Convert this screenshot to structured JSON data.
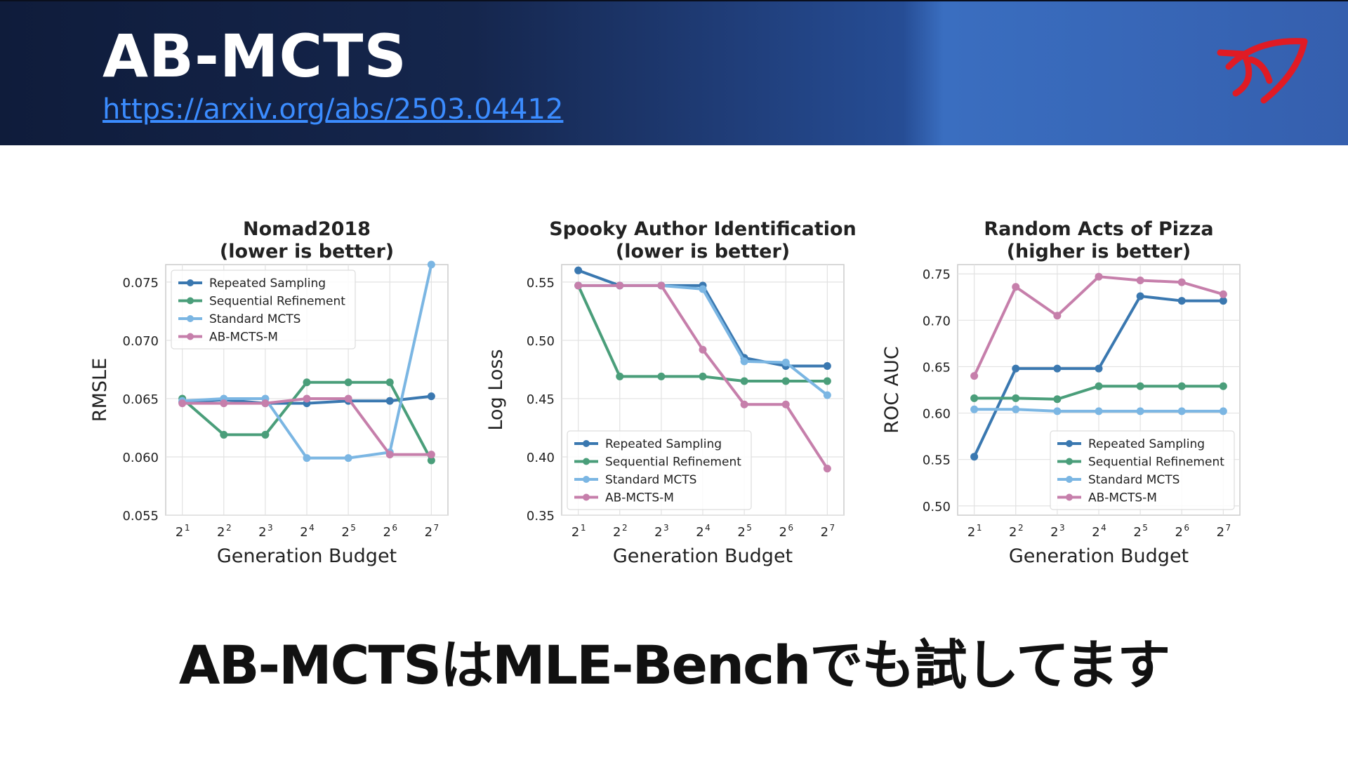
{
  "header": {
    "title": "AB-MCTS",
    "link": "https://arxiv.org/abs/2503.04412",
    "logo_icon": "red-fish-logo",
    "logo_color": "#e01b24"
  },
  "footer": {
    "text": "AB-MCTSはMLE-Benchでも試してます"
  },
  "series_colors": {
    "Repeated Sampling": "#3a78b0",
    "Sequential Refinement": "#4a9e7a",
    "Standard MCTS": "#7bb6e3",
    "AB-MCTS-M": "#c67fab"
  },
  "chart_data": [
    {
      "type": "line",
      "title": "Nomad2018",
      "subtitle": "(lower is better)",
      "xlabel": "Generation Budget",
      "ylabel": "RMSLE",
      "x": [
        1,
        2,
        3,
        4,
        5,
        6,
        7
      ],
      "x_ticks": [
        "2",
        "2",
        "2",
        "2",
        "2",
        "2",
        "2"
      ],
      "x_tick_exponents": [
        "1",
        "2",
        "3",
        "4",
        "5",
        "6",
        "7"
      ],
      "y_ticks": [
        "0.055",
        "0.060",
        "0.065",
        "0.070",
        "0.075"
      ],
      "y_tick_values": [
        0.055,
        0.06,
        0.065,
        0.07,
        0.075
      ],
      "ylim": [
        0.055,
        0.0765
      ],
      "legend_position": "top-left",
      "grid": true,
      "series": [
        {
          "name": "Repeated Sampling",
          "values": [
            0.0647,
            0.0649,
            0.0646,
            0.0646,
            0.0648,
            0.0648,
            0.0652
          ]
        },
        {
          "name": "Sequential Refinement",
          "values": [
            0.065,
            0.0619,
            0.0619,
            0.0664,
            0.0664,
            0.0664,
            0.0597
          ]
        },
        {
          "name": "Standard MCTS",
          "values": [
            0.0648,
            0.065,
            0.065,
            0.0599,
            0.0599,
            0.0604,
            0.0765
          ]
        },
        {
          "name": "AB-MCTS-M",
          "values": [
            0.0646,
            0.0646,
            0.0646,
            0.065,
            0.065,
            0.0602,
            0.0602
          ]
        }
      ]
    },
    {
      "type": "line",
      "title": "Spooky Author Identification",
      "subtitle": "(lower is better)",
      "xlabel": "Generation Budget",
      "ylabel": "Log Loss",
      "x": [
        1,
        2,
        3,
        4,
        5,
        6,
        7
      ],
      "x_ticks": [
        "2",
        "2",
        "2",
        "2",
        "2",
        "2",
        "2"
      ],
      "x_tick_exponents": [
        "1",
        "2",
        "3",
        "4",
        "5",
        "6",
        "7"
      ],
      "y_ticks": [
        "0.35",
        "0.40",
        "0.45",
        "0.50",
        "0.55"
      ],
      "y_tick_values": [
        0.35,
        0.4,
        0.45,
        0.5,
        0.55
      ],
      "ylim": [
        0.35,
        0.565
      ],
      "legend_position": "bottom-left",
      "grid": true,
      "series": [
        {
          "name": "Repeated Sampling",
          "values": [
            0.56,
            0.547,
            0.547,
            0.547,
            0.485,
            0.478,
            0.478
          ]
        },
        {
          "name": "Sequential Refinement",
          "values": [
            0.547,
            0.469,
            0.469,
            0.469,
            0.465,
            0.465,
            0.465
          ]
        },
        {
          "name": "Standard MCTS",
          "values": [
            0.547,
            0.547,
            0.547,
            0.544,
            0.482,
            0.481,
            0.453
          ]
        },
        {
          "name": "AB-MCTS-M",
          "values": [
            0.547,
            0.547,
            0.547,
            0.492,
            0.445,
            0.445,
            0.39
          ]
        }
      ]
    },
    {
      "type": "line",
      "title": "Random Acts of Pizza",
      "subtitle": "(higher is better)",
      "xlabel": "Generation Budget",
      "ylabel": "ROC AUC",
      "x": [
        1,
        2,
        3,
        4,
        5,
        6,
        7
      ],
      "x_ticks": [
        "2",
        "2",
        "2",
        "2",
        "2",
        "2",
        "2"
      ],
      "x_tick_exponents": [
        "1",
        "2",
        "3",
        "4",
        "5",
        "6",
        "7"
      ],
      "y_ticks": [
        "0.50",
        "0.55",
        "0.60",
        "0.65",
        "0.70",
        "0.75"
      ],
      "y_tick_values": [
        0.5,
        0.55,
        0.6,
        0.65,
        0.7,
        0.75
      ],
      "ylim": [
        0.49,
        0.76
      ],
      "legend_position": "bottom-right",
      "grid": true,
      "series": [
        {
          "name": "Repeated Sampling",
          "values": [
            0.553,
            0.648,
            0.648,
            0.648,
            0.726,
            0.721,
            0.721
          ]
        },
        {
          "name": "Sequential Refinement",
          "values": [
            0.616,
            0.616,
            0.615,
            0.629,
            0.629,
            0.629,
            0.629
          ]
        },
        {
          "name": "Standard MCTS",
          "values": [
            0.604,
            0.604,
            0.602,
            0.602,
            0.602,
            0.602,
            0.602
          ]
        },
        {
          "name": "AB-MCTS-M",
          "values": [
            0.64,
            0.736,
            0.705,
            0.747,
            0.743,
            0.741,
            0.728
          ]
        }
      ]
    }
  ]
}
